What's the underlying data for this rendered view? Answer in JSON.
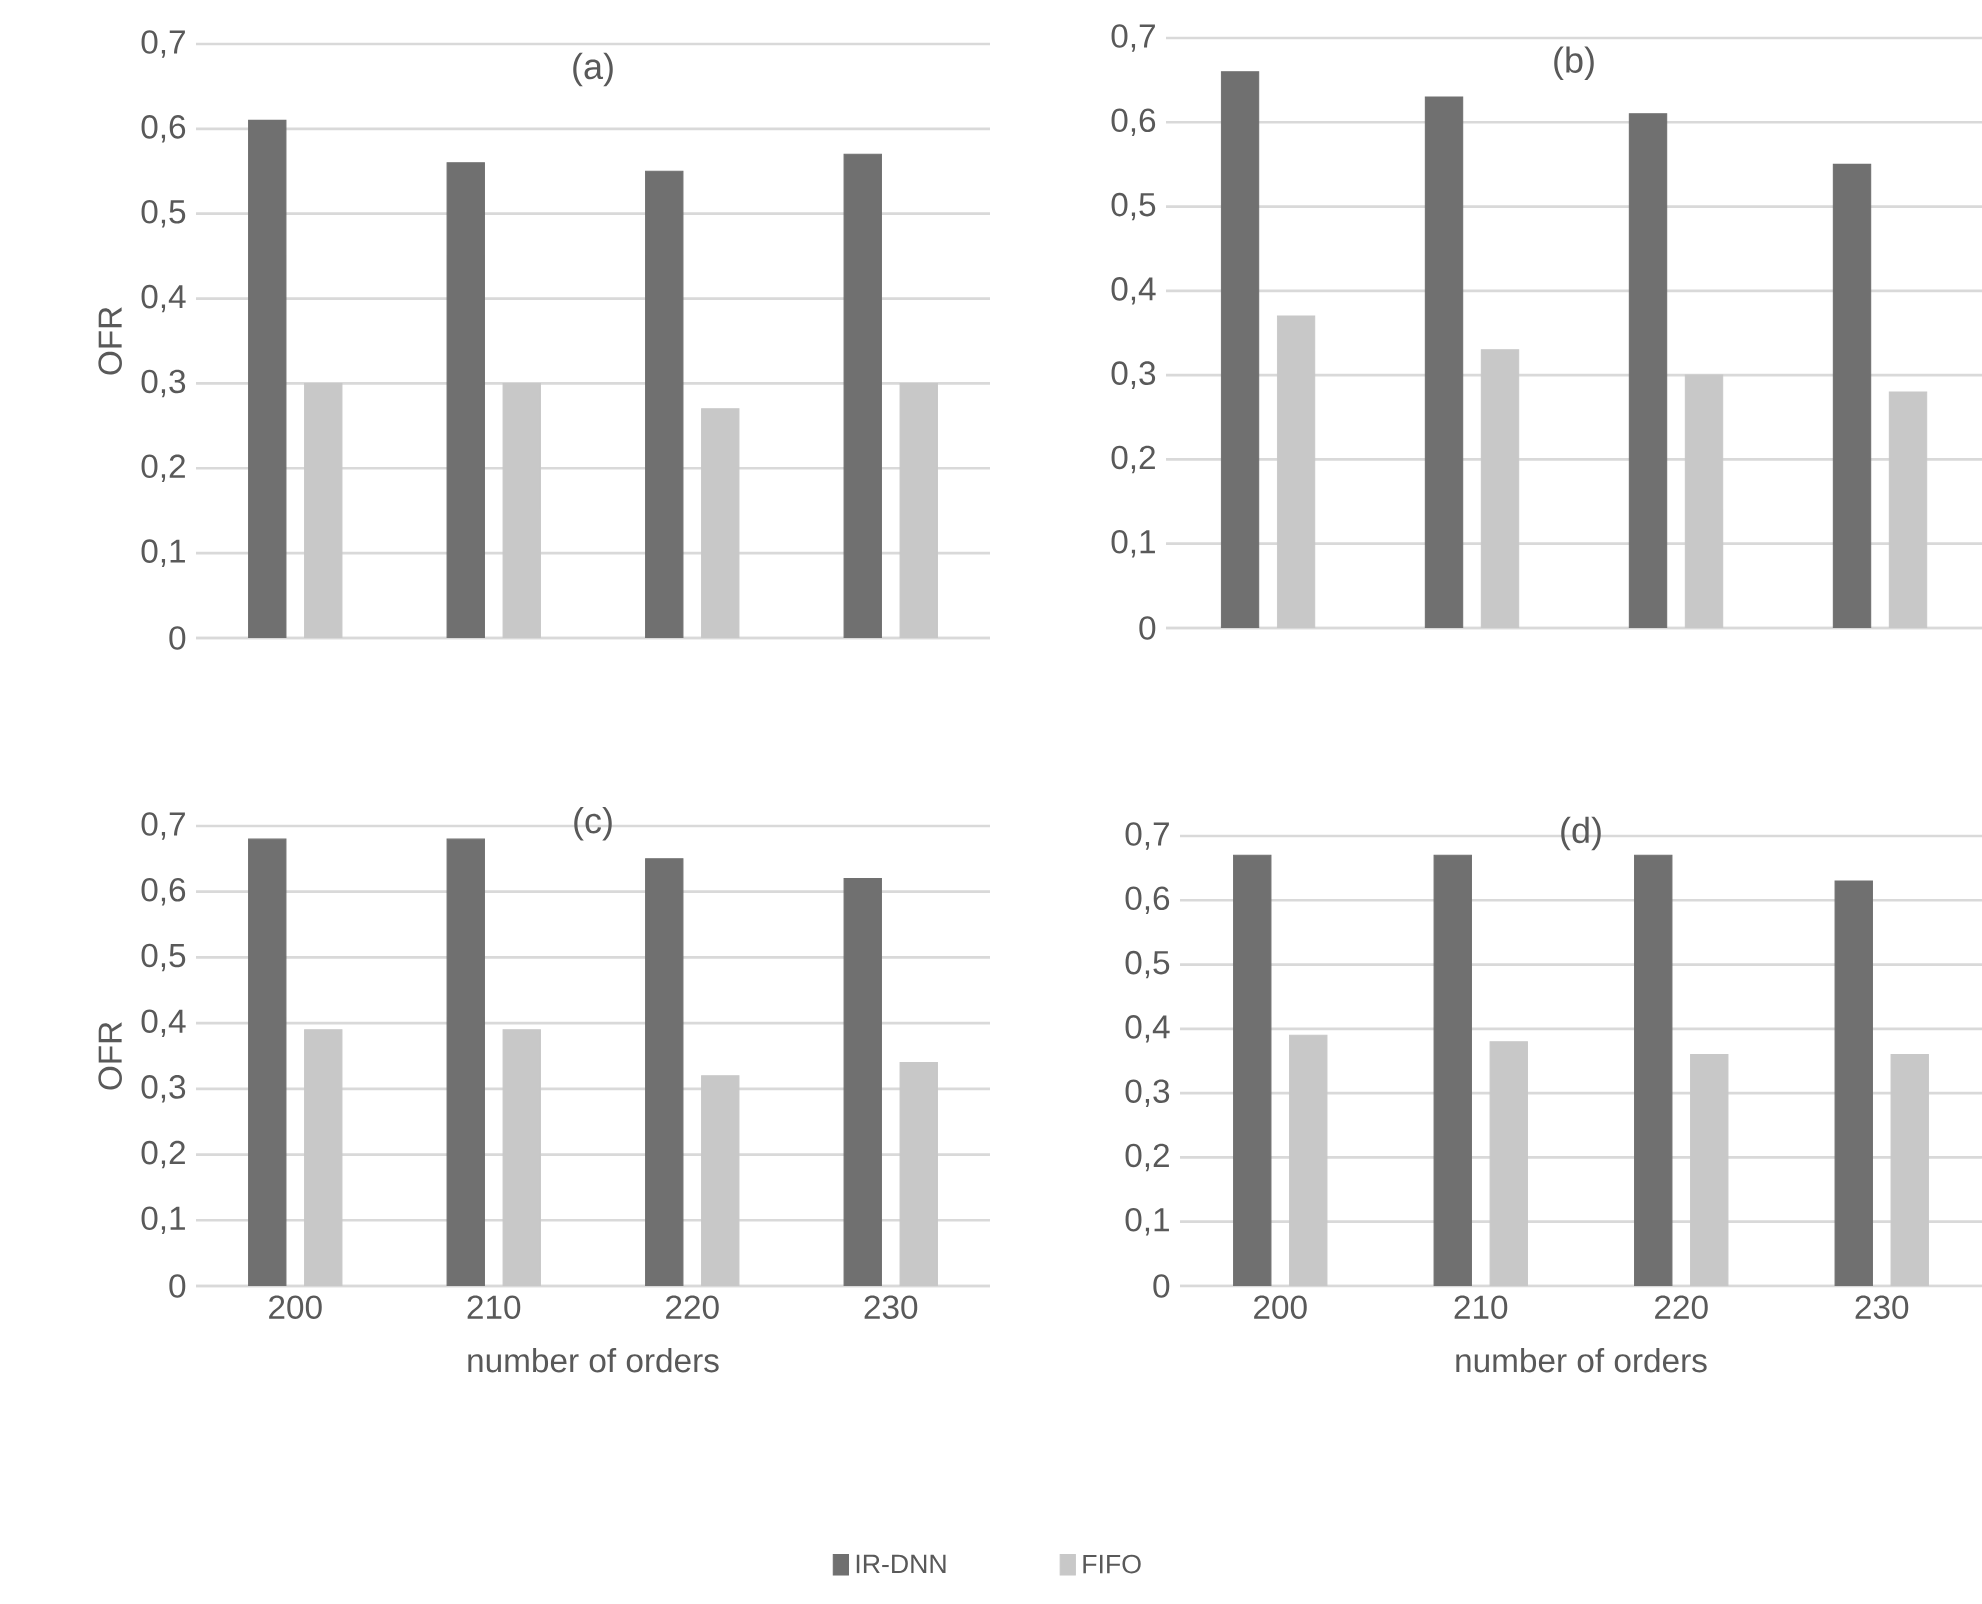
{
  "chart_data": [
    {
      "type": "bar",
      "title": "(a)",
      "ylabel": "OFR",
      "categories": [
        "200",
        "210",
        "220",
        "230"
      ],
      "series": [
        {
          "color": "#707070",
          "values": [
            0.61,
            0.56,
            0.55,
            0.57
          ]
        },
        {
          "color": "#c8c8c8",
          "values": [
            0.3,
            0.3,
            0.27,
            0.3
          ]
        }
      ],
      "ylim": [
        0,
        0.7
      ],
      "yticks": [
        0,
        {
          "value": 0.1,
          "label": "0,1"
        },
        {
          "value": 0.2,
          "label": "0,2"
        },
        {
          "value": 0.3,
          "label": "0,3"
        },
        {
          "value": 0.4,
          "label": "0,4"
        },
        {
          "value": 0.5,
          "label": "0,5"
        },
        {
          "value": 0.6,
          "label": "0,6"
        },
        {
          "value": 0.7,
          "label": "0,7"
        }
      ],
      "grid": "y",
      "tick_labels": "y"
    },
    {
      "type": "bar",
      "title": "(b)",
      "categories": [
        "200",
        "210",
        "220",
        "230"
      ],
      "series": [
        {
          "color": "#707070",
          "values": [
            0.66,
            0.63,
            0.61,
            0.55
          ]
        },
        {
          "color": "#c8c8c8",
          "values": [
            0.37,
            0.33,
            0.3,
            0.28
          ]
        }
      ],
      "ylim": [
        0,
        0.7
      ],
      "yticks": [
        0,
        {
          "value": 0.1,
          "label": "0,1"
        },
        {
          "value": 0.2,
          "label": "0,2"
        },
        {
          "value": 0.3,
          "label": "0,3"
        },
        {
          "value": 0.4,
          "label": "0,4"
        },
        {
          "value": 0.5,
          "label": "0,5"
        },
        {
          "value": 0.6,
          "label": "0,6"
        },
        {
          "value": 0.7,
          "label": "0,7"
        }
      ],
      "grid": "y",
      "tick_labels": "y"
    },
    {
      "type": "bar",
      "title": "(c)",
      "xlabel": "number of orders",
      "ylabel": "OFR",
      "categories": [
        "200",
        "210",
        "220",
        "230"
      ],
      "series": [
        {
          "color": "#707070",
          "values": [
            0.68,
            0.68,
            0.65,
            0.62
          ]
        },
        {
          "color": "#c8c8c8",
          "values": [
            0.39,
            0.39,
            0.32,
            0.34
          ]
        }
      ],
      "ylim": [
        0,
        0.7
      ],
      "yticks": [
        0,
        {
          "value": 0.1,
          "label": "0,1"
        },
        {
          "value": 0.2,
          "label": "0,2"
        },
        {
          "value": 0.3,
          "label": "0,3"
        },
        {
          "value": 0.4,
          "label": "0,4"
        },
        {
          "value": 0.5,
          "label": "0,5"
        },
        {
          "value": 0.6,
          "label": "0,6"
        },
        {
          "value": 0.7,
          "label": "0,7"
        }
      ],
      "grid": "y"
    },
    {
      "type": "bar",
      "title": "(d)",
      "xlabel": "number of orders",
      "categories": [
        "200",
        "210",
        "220",
        "230"
      ],
      "series": [
        {
          "name": "IR-DNN",
          "color": "#707070",
          "values": [
            0.67,
            0.67,
            0.67,
            0.63
          ]
        },
        {
          "name": "FIFO",
          "color": "#c8c8c8",
          "values": [
            0.39,
            0.38,
            0.36,
            0.36
          ]
        }
      ],
      "ylim": [
        0,
        0.7
      ],
      "yticks": [
        0,
        {
          "value": 0.1,
          "label": "0,1"
        },
        {
          "value": 0.2,
          "label": "0,2"
        },
        {
          "value": 0.3,
          "label": "0,3"
        },
        {
          "value": 0.4,
          "label": "0,4"
        },
        {
          "value": 0.5,
          "label": "0,5"
        },
        {
          "value": 0.6,
          "label": "0,6"
        },
        {
          "value": 0.7,
          "label": "0,7"
        }
      ],
      "grid": "y",
      "legend": "bottom"
    }
  ]
}
